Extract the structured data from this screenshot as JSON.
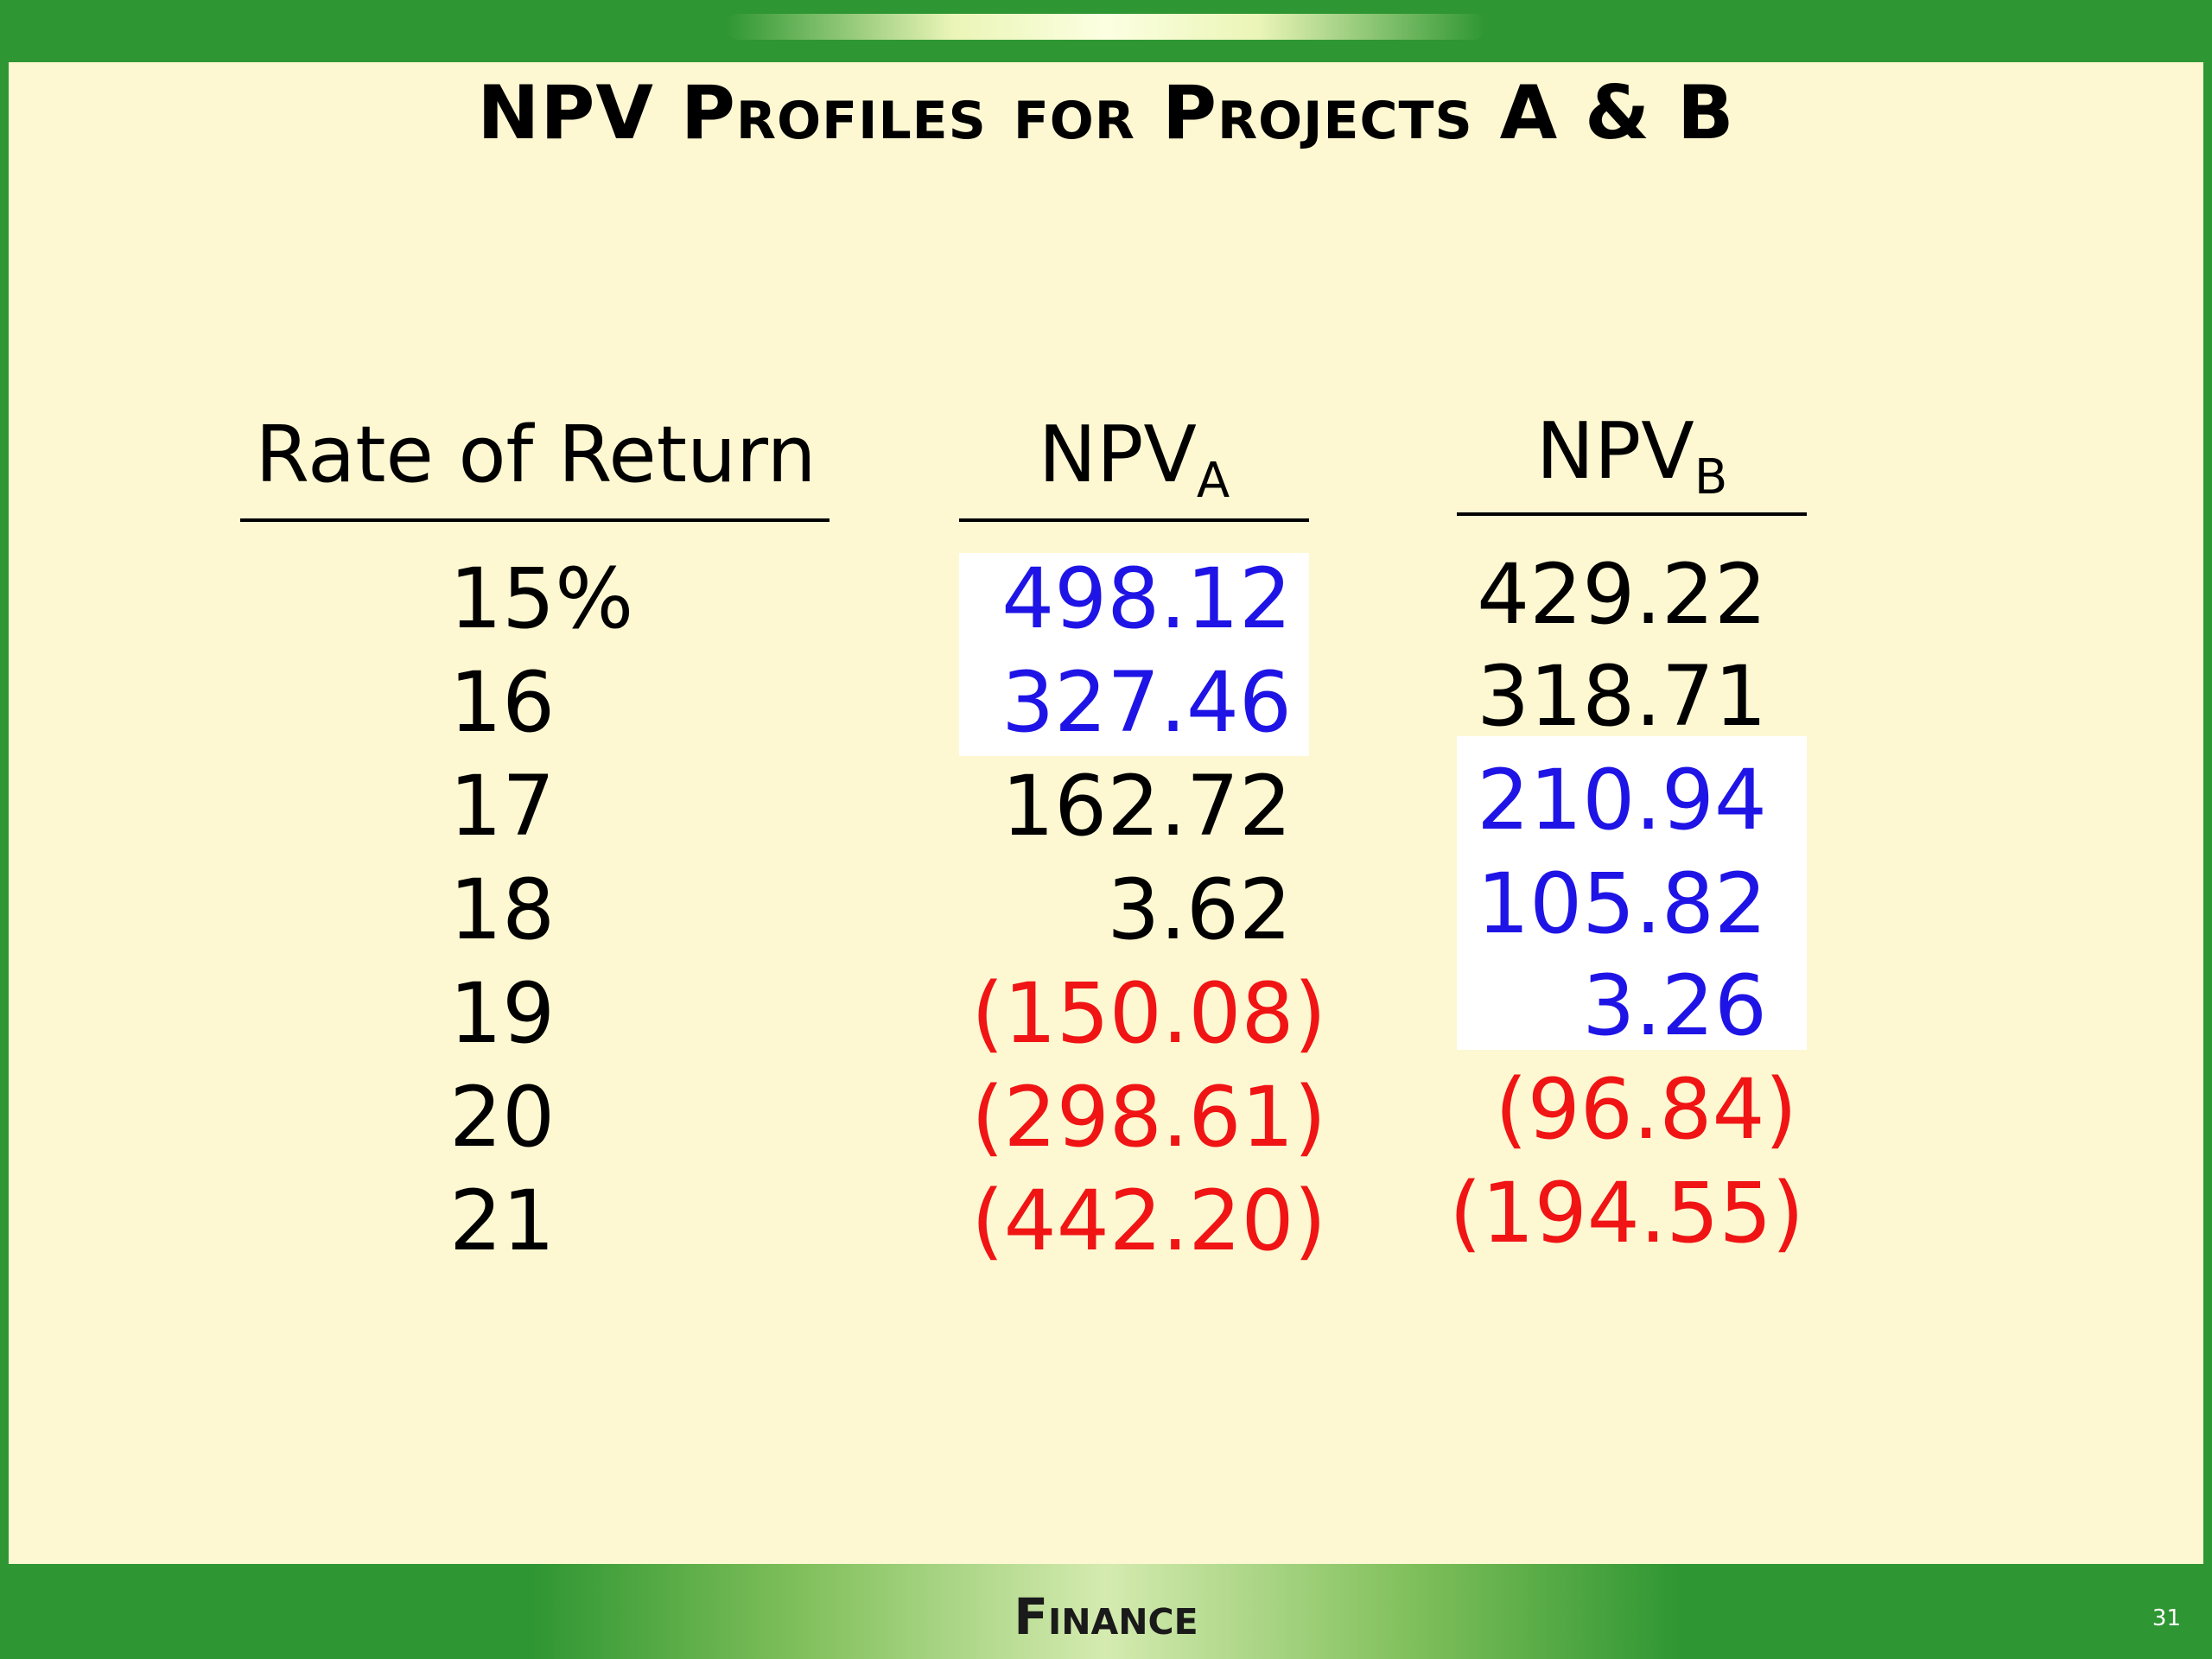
{
  "title": "NPV Profiles for Projects A & B",
  "headers": {
    "rate": "Rate of Return",
    "npv_a_main": "NPV",
    "npv_a_sub": "A",
    "npv_b_main": "NPV",
    "npv_b_sub": "B"
  },
  "rows": [
    {
      "rate": "15%",
      "npv_a": "498.12",
      "npv_b": "429.22"
    },
    {
      "rate": "16",
      "npv_a": "327.46",
      "npv_b": "318.71"
    },
    {
      "rate": "17",
      "npv_a": "162.72",
      "npv_b": "210.94"
    },
    {
      "rate": "18",
      "npv_a": "3.62",
      "npv_b": "105.82"
    },
    {
      "rate": "19",
      "npv_a": "(150.08)",
      "npv_b": "3.26"
    },
    {
      "rate": "20",
      "npv_a": "(298.61)",
      "npv_b": "(96.84)"
    },
    {
      "rate": "21",
      "npv_a": "(442.20)",
      "npv_b": "(194.55)"
    }
  ],
  "colors": {
    "positive": "#000000",
    "highlighted": "#1f14e6",
    "negative": "#f01414"
  },
  "footer": "Finance",
  "slide_number": "31"
}
